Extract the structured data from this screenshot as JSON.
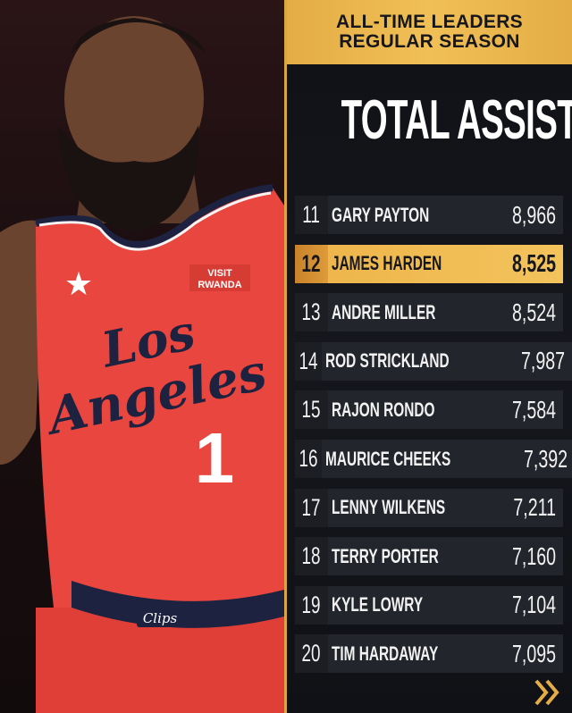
{
  "header": {
    "line1": "ALL-TIME LEADERS",
    "line2": "REGULAR SEASON"
  },
  "title": "TOTAL ASSISTS",
  "colors": {
    "gold": "#f0bf55",
    "highlight_rank": "#dd9b3a",
    "row_bg": "#22252b",
    "jersey": "#e8463e"
  },
  "photo": {
    "sponsor_line1": "VISIT",
    "sponsor_line2": "RWANDA",
    "team_script_1": "Los",
    "team_script_2": "Angeles",
    "number": "1",
    "waistband": "Clips"
  },
  "leaders": [
    {
      "rank": "11",
      "name": "GARY PAYTON",
      "assists": "8,966"
    },
    {
      "rank": "12",
      "name": "JAMES HARDEN",
      "assists": "8,525",
      "highlight": true
    },
    {
      "rank": "13",
      "name": "ANDRE MILLER",
      "assists": "8,524"
    },
    {
      "rank": "14",
      "name": "ROD STRICKLAND",
      "assists": "7,987"
    },
    {
      "rank": "15",
      "name": "RAJON RONDO",
      "assists": "7,584"
    },
    {
      "rank": "16",
      "name": "MAURICE CHEEKS",
      "assists": "7,392"
    },
    {
      "rank": "17",
      "name": "LENNY WILKENS",
      "assists": "7,211"
    },
    {
      "rank": "18",
      "name": "TERRY PORTER",
      "assists": "7,160"
    },
    {
      "rank": "19",
      "name": "KYLE LOWRY",
      "assists": "7,104"
    },
    {
      "rank": "20",
      "name": "TIM HARDAWAY",
      "assists": "7,095"
    }
  ],
  "next_icon": "double-chevron-right-icon"
}
